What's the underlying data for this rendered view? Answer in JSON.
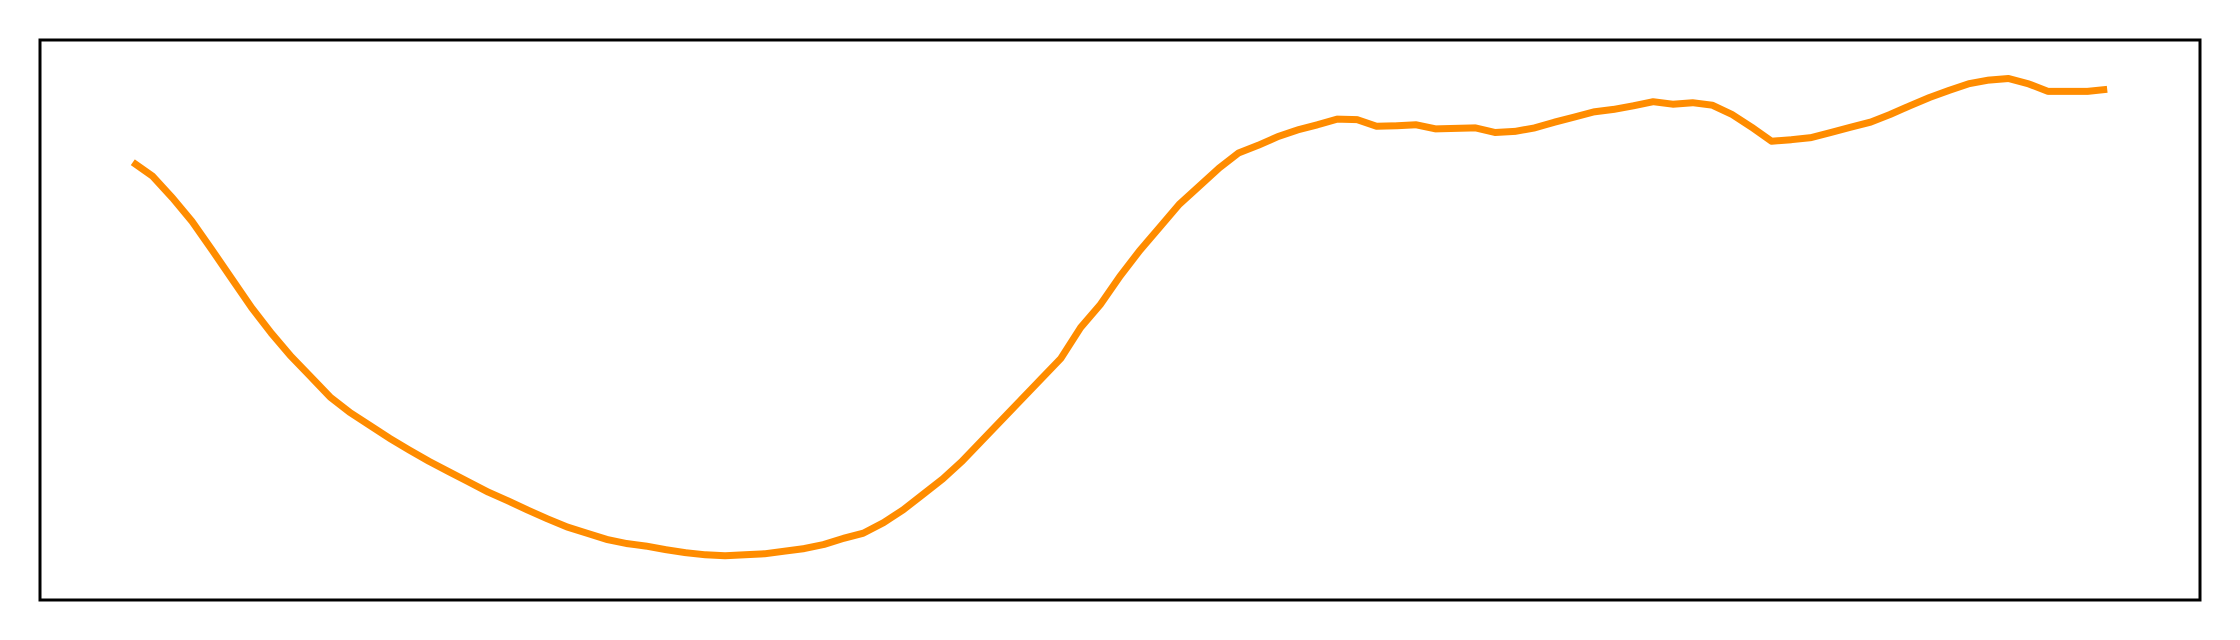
{
  "chart_data": {
    "type": "line",
    "title": "",
    "xlabel": "",
    "ylabel": "",
    "grid": false,
    "legend": "none",
    "xlim": [
      -4.7,
      104.7
    ],
    "ylim": [
      -0.07,
      1.02
    ],
    "series": [
      {
        "color": "#ff8c00",
        "x": [
          0,
          1,
          2,
          3,
          4,
          5,
          6,
          7,
          8,
          9,
          10,
          11,
          12,
          13,
          14,
          15,
          16,
          17,
          18,
          19,
          20,
          21,
          22,
          23,
          24,
          25,
          26,
          27,
          28,
          29,
          30,
          31,
          32,
          33,
          34,
          35,
          36,
          37,
          38,
          39,
          40,
          41,
          42,
          43,
          44,
          45,
          46,
          47,
          48,
          49,
          50,
          51,
          52,
          53,
          54,
          55,
          56,
          57,
          58,
          59,
          60,
          61,
          62,
          63,
          64,
          65,
          66,
          67,
          68,
          69,
          70,
          71,
          72,
          73,
          74,
          75,
          76,
          77,
          78,
          79,
          80,
          81,
          82,
          83,
          84,
          85,
          86,
          87,
          88,
          89,
          90,
          91,
          92,
          93,
          94,
          95,
          96,
          97,
          98,
          99,
          100
        ],
        "y": [
          0.782,
          0.755,
          0.713,
          0.667,
          0.612,
          0.556,
          0.5,
          0.45,
          0.405,
          0.365,
          0.325,
          0.295,
          0.27,
          0.245,
          0.222,
          0.2,
          0.18,
          0.16,
          0.14,
          0.123,
          0.105,
          0.088,
          0.072,
          0.06,
          0.048,
          0.04,
          0.035,
          0.028,
          0.022,
          0.018,
          0.016,
          0.018,
          0.02,
          0.025,
          0.03,
          0.038,
          0.05,
          0.06,
          0.08,
          0.105,
          0.135,
          0.165,
          0.2,
          0.24,
          0.28,
          0.32,
          0.36,
          0.4,
          0.46,
          0.505,
          0.56,
          0.61,
          0.655,
          0.7,
          0.735,
          0.77,
          0.8,
          0.815,
          0.832,
          0.845,
          0.855,
          0.866,
          0.865,
          0.852,
          0.853,
          0.855,
          0.847,
          0.848,
          0.849,
          0.84,
          0.842,
          0.849,
          0.86,
          0.87,
          0.88,
          0.885,
          0.892,
          0.9,
          0.895,
          0.898,
          0.893,
          0.875,
          0.85,
          0.823,
          0.826,
          0.83,
          0.84,
          0.85,
          0.86,
          0.875,
          0.892,
          0.908,
          0.922,
          0.935,
          0.942,
          0.945,
          0.935,
          0.92,
          0.92,
          0.92,
          0.924
        ]
      }
    ]
  }
}
